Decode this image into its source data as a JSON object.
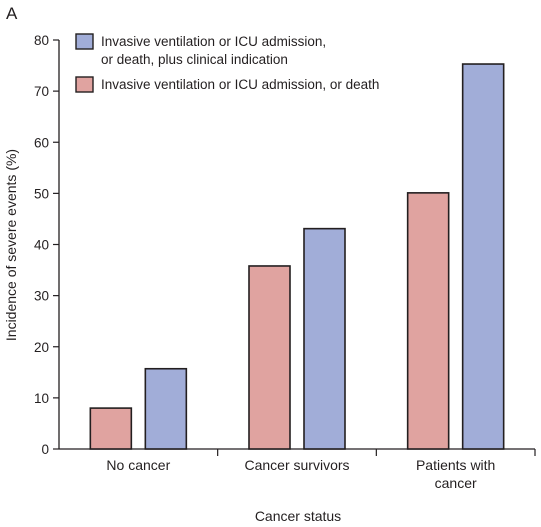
{
  "panel_label": "A",
  "chart_data": {
    "type": "bar",
    "title": "",
    "xlabel": "Cancer status",
    "ylabel": "Incidence of severe events (%)",
    "ylim": [
      0,
      80
    ],
    "yticks": [
      0,
      10,
      20,
      30,
      40,
      50,
      60,
      70,
      80
    ],
    "categories": [
      [
        "No cancer"
      ],
      [
        "Cancer survivors"
      ],
      [
        "Patients with",
        "cancer"
      ]
    ],
    "series": [
      {
        "name": "Invasive ventilation or ICU admission, or death",
        "color": "#e0a3a0",
        "values": [
          8,
          35.8,
          50.1
        ]
      },
      {
        "name": "Invasive ventilation or ICU admission, or death, plus clinical indication",
        "color": "#a1add8",
        "values": [
          15.7,
          43.1,
          75.3
        ]
      }
    ],
    "legend": {
      "position": "top-left",
      "order": [
        1,
        0
      ],
      "lines": [
        [
          "Invasive ventilation or ICU admission,",
          "or death, plus clinical indication"
        ],
        [
          "Invasive ventilation or ICU admission, or death"
        ]
      ]
    },
    "grid": false
  }
}
